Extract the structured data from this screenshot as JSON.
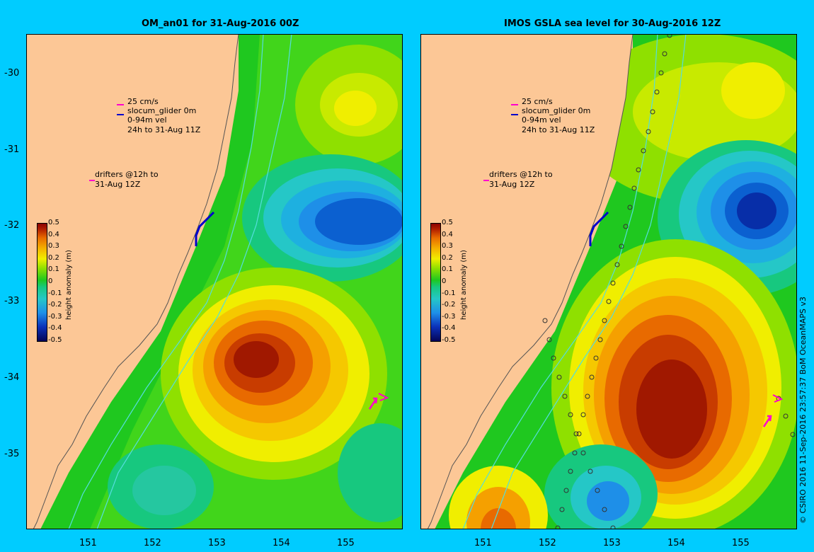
{
  "left_panel": {
    "title": "OM_an01 for 31-Aug-2016 00Z",
    "legend_vel_scale": "25 cm/s",
    "legend_glider": "slocum_glider 0m",
    "legend_glider_2": "0-94m vel",
    "legend_glider_3": "24h to 31-Aug 11Z",
    "legend_drifters": "drifters @12h to",
    "legend_drifters_2": "31-Aug 12Z"
  },
  "right_panel": {
    "title": "IMOS GSLA sea level  for 30-Aug-2016 12Z",
    "legend_vel_scale": "25 cm/s",
    "legend_glider": "slocum_glider 0m",
    "legend_glider_2": "0-94m vel",
    "legend_glider_3": "24h to 31-Aug 11Z",
    "legend_drifters": "drifters @12h to",
    "legend_drifters_2": "31-Aug 12Z"
  },
  "axes": {
    "lat_ticks": [
      "-30",
      "-31",
      "-32",
      "-33",
      "-34",
      "-35"
    ],
    "lon_ticks": [
      "151",
      "152",
      "153",
      "154",
      "155"
    ]
  },
  "colorbar": {
    "label": "height anomaly (m)",
    "ticks": [
      "0.5",
      "0.4",
      "0.3",
      "0.2",
      "0.1",
      "0",
      "-0.1",
      "-0.2",
      "-0.3",
      "-0.4",
      "-0.5"
    ],
    "range": [
      -0.5,
      0.5
    ]
  },
  "credit": "© CSIRO 2016  11-Sep-2016 23:57:37 BoM OceanMAPS v3",
  "colors": {
    "background": "#00ccff",
    "land": "#fcc796",
    "positive_max": "#8a0000",
    "negative_min": "#050557"
  }
}
